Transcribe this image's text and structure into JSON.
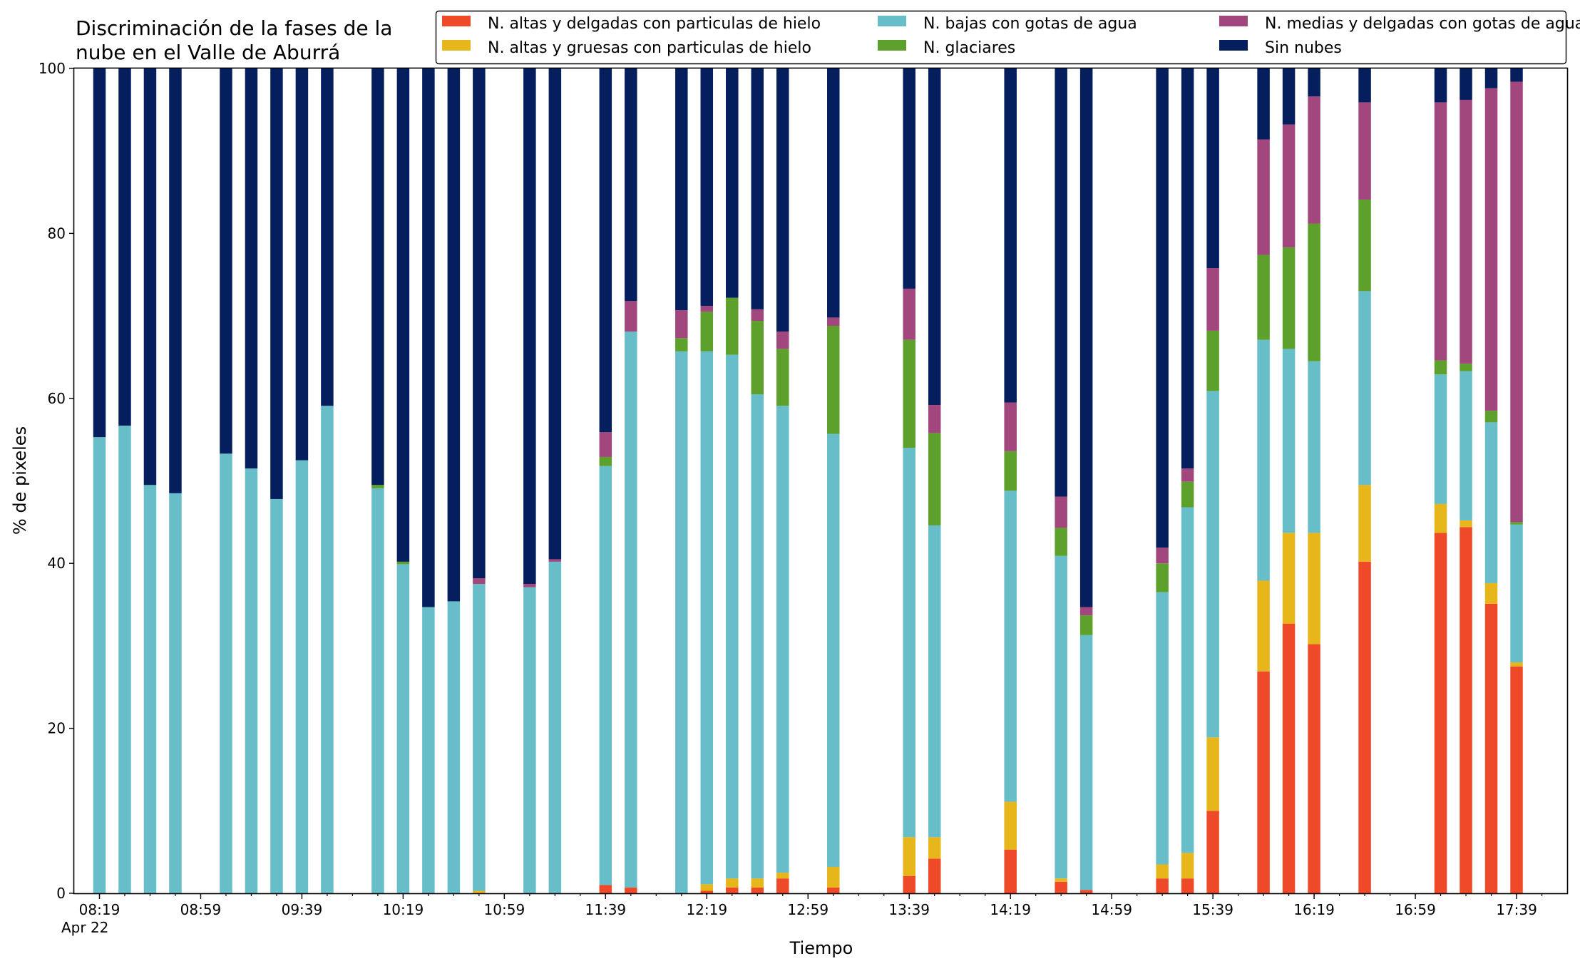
{
  "chart_data": {
    "type": "bar",
    "stacked": true,
    "title_lines": [
      "Discriminación de la fases de la",
      "nube en el Valle de Aburrá"
    ],
    "xlabel": "Tiempo",
    "ylabel": "% de pixeles",
    "ylim": [
      0,
      100
    ],
    "y_ticks": [
      "0",
      "20",
      "40",
      "60",
      "80",
      "100"
    ],
    "x_time_range": [
      "08:09",
      "17:59"
    ],
    "x_tick_labels": [
      "08:19",
      "08:59",
      "09:39",
      "10:19",
      "10:59",
      "11:39",
      "12:19",
      "12:59",
      "13:39",
      "14:19",
      "14:59",
      "15:39",
      "16:19",
      "16:59",
      "17:39"
    ],
    "x_date_label": "Apr 22",
    "legend_position": "top-right",
    "legend_columns": 3,
    "grid": false,
    "series": [
      {
        "name": "N. altas y delgadas con particulas de hielo",
        "color": "#ee4a2a"
      },
      {
        "name": "N. altas y gruesas con particulas de hielo",
        "color": "#e6b61a"
      },
      {
        "name": "N. bajas con gotas de agua",
        "color": "#67bec9"
      },
      {
        "name": "N. glaciares",
        "color": "#5da12c"
      },
      {
        "name": "N. medias y delgadas con gotas de agua",
        "color": "#a2467e"
      },
      {
        "name": "Sin nubes",
        "color": "#041e5e"
      }
    ],
    "legend_order": [
      0,
      2,
      4,
      1,
      3,
      5
    ],
    "bars": [
      {
        "time": "08:19",
        "values": [
          0,
          0,
          55.3,
          0,
          0,
          44.7
        ]
      },
      {
        "time": "08:29",
        "values": [
          0,
          0,
          56.7,
          0,
          0,
          43.3
        ]
      },
      {
        "time": "08:39",
        "values": [
          0,
          0,
          49.5,
          0,
          0,
          50.5
        ]
      },
      {
        "time": "08:49",
        "values": [
          0,
          0,
          48.5,
          0,
          0,
          51.5
        ]
      },
      {
        "time": "09:09",
        "values": [
          0,
          0,
          53.3,
          0,
          0,
          46.7
        ]
      },
      {
        "time": "09:19",
        "values": [
          0,
          0,
          51.5,
          0,
          0,
          48.5
        ]
      },
      {
        "time": "09:29",
        "values": [
          0,
          0,
          47.8,
          0,
          0,
          52.2
        ]
      },
      {
        "time": "09:39",
        "values": [
          0,
          0,
          52.5,
          0,
          0,
          47.5
        ]
      },
      {
        "time": "09:49",
        "values": [
          0,
          0,
          59.1,
          0,
          0,
          40.9
        ]
      },
      {
        "time": "10:09",
        "values": [
          0,
          0,
          49.1,
          0.4,
          0,
          50.5
        ]
      },
      {
        "time": "10:19",
        "values": [
          0,
          0,
          39.9,
          0.3,
          0,
          59.8
        ]
      },
      {
        "time": "10:29",
        "values": [
          0,
          0,
          34.7,
          0,
          0,
          65.3
        ]
      },
      {
        "time": "10:39",
        "values": [
          0,
          0,
          35.4,
          0,
          0,
          64.6
        ]
      },
      {
        "time": "10:49",
        "values": [
          0,
          0.3,
          37.2,
          0,
          0.7,
          61.8
        ]
      },
      {
        "time": "11:09",
        "values": [
          0,
          0,
          37.1,
          0,
          0.4,
          62.5
        ]
      },
      {
        "time": "11:19",
        "values": [
          0,
          0,
          40.2,
          0,
          0.3,
          59.5
        ]
      },
      {
        "time": "11:39",
        "values": [
          1,
          0,
          50.8,
          1.1,
          3,
          44.1
        ]
      },
      {
        "time": "11:49",
        "values": [
          0.7,
          0,
          67.4,
          0,
          3.7,
          28.2
        ]
      },
      {
        "time": "12:09",
        "values": [
          0,
          0,
          65.7,
          1.6,
          3.4,
          29.3
        ]
      },
      {
        "time": "12:19",
        "values": [
          0.3,
          0.8,
          64.6,
          4.8,
          0.7,
          28.8
        ]
      },
      {
        "time": "12:29",
        "values": [
          0.7,
          1.1,
          63.5,
          6.9,
          0,
          27.8
        ]
      },
      {
        "time": "12:39",
        "values": [
          0.7,
          1.1,
          58.7,
          8.9,
          1.4,
          29.2
        ]
      },
      {
        "time": "12:49",
        "values": [
          1.8,
          0.7,
          56.6,
          6.9,
          2.1,
          31.9
        ]
      },
      {
        "time": "13:09",
        "values": [
          0.7,
          2.5,
          52.5,
          13.1,
          1,
          30.2
        ]
      },
      {
        "time": "13:39",
        "values": [
          2.1,
          4.7,
          47.2,
          13.1,
          6.2,
          26.7
        ]
      },
      {
        "time": "13:49",
        "values": [
          4.2,
          2.6,
          37.8,
          11.2,
          3.4,
          40.8
        ]
      },
      {
        "time": "14:19",
        "values": [
          5.3,
          5.8,
          37.7,
          4.8,
          5.9,
          40.5
        ]
      },
      {
        "time": "14:39",
        "values": [
          1.4,
          0.4,
          39.1,
          3.4,
          3.8,
          51.9
        ]
      },
      {
        "time": "14:49",
        "values": [
          0.4,
          0,
          30.9,
          2.4,
          1,
          65.3
        ]
      },
      {
        "time": "15:19",
        "values": [
          1.8,
          1.7,
          33,
          3.5,
          1.9,
          58.1
        ]
      },
      {
        "time": "15:29",
        "values": [
          1.8,
          3.1,
          41.9,
          3.1,
          1.6,
          48.5
        ]
      },
      {
        "time": "15:39",
        "values": [
          10,
          8.9,
          42,
          7.3,
          7.6,
          24.2
        ]
      },
      {
        "time": "15:59",
        "values": [
          26.9,
          11,
          29.2,
          10.3,
          14,
          8.6
        ]
      },
      {
        "time": "16:09",
        "values": [
          32.7,
          11,
          22.3,
          12.3,
          14.9,
          6.8
        ]
      },
      {
        "time": "16:19",
        "values": [
          30.2,
          13.5,
          20.8,
          16.7,
          15.4,
          3.4
        ]
      },
      {
        "time": "16:39",
        "values": [
          40.2,
          9.3,
          23.5,
          11.1,
          11.8,
          4.1
        ]
      },
      {
        "time": "17:09",
        "values": [
          43.7,
          3.5,
          15.7,
          1.7,
          31.3,
          4.1
        ]
      },
      {
        "time": "17:19",
        "values": [
          44.4,
          0.8,
          18.1,
          0.9,
          32,
          3.8
        ]
      },
      {
        "time": "17:29",
        "values": [
          35.1,
          2.5,
          19.5,
          1.4,
          39.1,
          2.4
        ]
      },
      {
        "time": "17:39",
        "values": [
          27.5,
          0.5,
          16.7,
          0.3,
          53.4,
          1.6
        ]
      }
    ]
  }
}
